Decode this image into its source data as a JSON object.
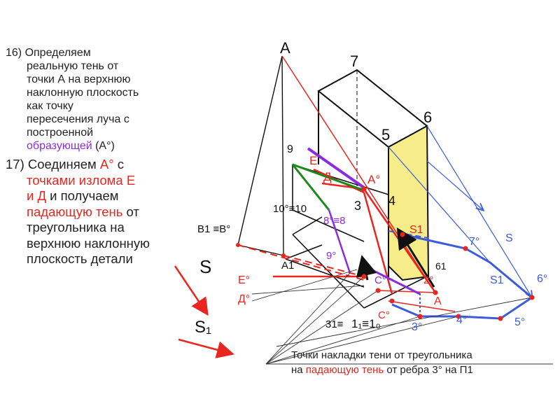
{
  "notes": {
    "step16": {
      "line1": "16)  Определяем",
      "lines": [
        "реальную тень от",
        "точки А на верхнюю",
        "наклонную плоскость",
        "как точку",
        "пересечения луча с",
        "построенной"
      ],
      "tail_colored": "образующей",
      "tail_plain": " (А°)"
    },
    "step17": {
      "p1": "17) Соединяем ",
      "p2": "А°",
      "p3": " с ",
      "p4": "точками излома Е",
      "p5": "и Д",
      "p6": " и получаем ",
      "p7": "падающую тень",
      "p8": " от треугольника на верхнюю наклонную плоскость детали"
    }
  },
  "labels": {
    "A_top": "А",
    "seven": "7",
    "six": "6",
    "five": "5",
    "nine": "9",
    "E": "Е",
    "D": "Д",
    "A_deg": "А°",
    "four_hand": "4",
    "three_hand": "3",
    "ten_ten": "10°≡10",
    "b1": "В1 ≡В°",
    "eight": "8°≡8",
    "s1_mid": "S1",
    "seven_deg": "7°",
    "S_right": "S",
    "A1": "А1",
    "nine_deg": "9°",
    "sixone": "61",
    "s1_right": "S1",
    "six_deg": "6°",
    "E_deg": "Е°",
    "D_deg": "Д°",
    "C_deg": "С°",
    "two_deg": "2°",
    "A_red": "А",
    "four_deg": "4°",
    "C2_deg": "С°",
    "three_deg": "3°",
    "five_deg": "5°",
    "three1": "31≡",
    "one_ten": "1₁≡1₀",
    "legend_S": "S",
    "legend_S1": "S₁"
  },
  "footer": {
    "line1": "Точки накладки тени от треугольника",
    "line2_p1": "на ",
    "line2_p2": "падающую тень",
    "line2_p3": " от ребра 3° на П1"
  },
  "colors": {
    "red": "#e8261f",
    "blue": "#3b5bd9",
    "purple": "#8a2be2",
    "green": "#1a8a1a",
    "yellow": "#f6ec8a",
    "black": "#111111"
  }
}
